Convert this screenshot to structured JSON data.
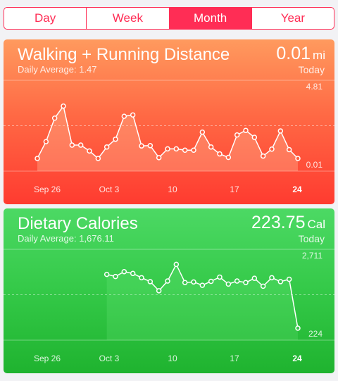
{
  "segments": {
    "day": "Day",
    "week": "Week",
    "month": "Month",
    "year": "Year",
    "selected": "Month"
  },
  "walking": {
    "title": "Walking + Running Distance",
    "daily_average": "Daily Average: 1.47",
    "value": "0.01",
    "unit": "mi",
    "today": "Today",
    "y_max_label": "4.81",
    "y_min_label": "0.01",
    "colors": {
      "top": "#ff9a5e",
      "bottom": "#ff3b30"
    }
  },
  "dietary": {
    "title": "Dietary Calories",
    "daily_average": "Daily Average: 1,676.11",
    "value": "223.75",
    "unit": "Cal",
    "today": "Today",
    "y_max_label": "2,711",
    "y_min_label": "224",
    "colors": {
      "top": "#4cd964",
      "bottom": "#1fb32f"
    }
  },
  "chart_data": [
    {
      "type": "line",
      "title": "Walking + Running Distance",
      "x_tick_labels": [
        "Sep 26",
        "Oct 3",
        "10",
        "17",
        "24"
      ],
      "ylim": [
        0.01,
        4.81
      ],
      "series": [
        {
          "values": [
            0.01,
            1.27,
            3.03,
            3.93,
            1.01,
            1.01,
            0.57,
            0.01,
            0.87,
            1.45,
            3.17,
            3.27,
            0.95,
            0.97,
            0.07,
            0.73,
            0.73,
            0.63,
            0.63,
            1.98,
            0.87,
            0.35,
            0.09,
            1.77,
            2.11,
            1.59,
            0.19,
            0.71,
            2.07,
            0.67,
            0.01
          ]
        }
      ]
    },
    {
      "type": "line",
      "title": "Dietary Calories",
      "x_tick_labels": [
        "Sep 26",
        "Oct 3",
        "10",
        "17",
        "24"
      ],
      "ylim": [
        224,
        2711
      ],
      "series": [
        {
          "values": [
            2000,
            1930,
            2090,
            2030,
            1890,
            1760,
            1460,
            1780,
            2330,
            1730,
            1750,
            1640,
            1770,
            1910,
            1680,
            1780,
            1730,
            1870,
            1610,
            1890,
            1760,
            1840,
            224
          ]
        }
      ]
    }
  ]
}
